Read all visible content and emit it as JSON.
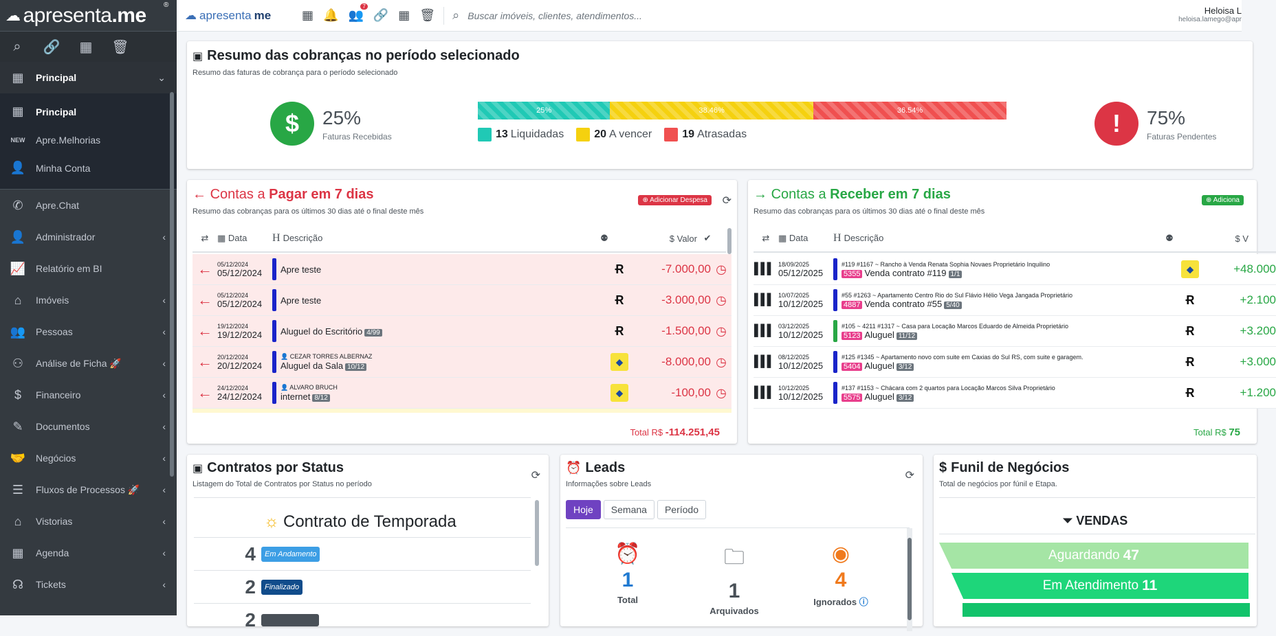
{
  "sidebar": {
    "brand_light": "apresenta",
    "brand_bold": ".me",
    "brand_reg": "®",
    "sections": [
      {
        "label": "Principal"
      }
    ],
    "sub_items": [
      {
        "label": "Principal"
      },
      {
        "label": "Apre.Melhorias"
      },
      {
        "label": "Minha Conta"
      }
    ],
    "items": [
      {
        "label": "Apre.Chat"
      },
      {
        "label": "Administrador"
      },
      {
        "label": "Relatório em BI"
      },
      {
        "label": "Imóveis"
      },
      {
        "label": "Pessoas"
      },
      {
        "label": "Análise de Ficha 🚀"
      },
      {
        "label": "Financeiro"
      },
      {
        "label": "Documentos"
      },
      {
        "label": "Negócios"
      },
      {
        "label": "Fluxos de Processos 🚀"
      },
      {
        "label": "Vistorias"
      },
      {
        "label": "Agenda"
      },
      {
        "label": "Tickets"
      }
    ]
  },
  "topbar": {
    "logo_light": "apresenta",
    "logo_bold": "me",
    "notification_count": "7",
    "search_placeholder": "Buscar imóveis, clientes, atendimentos...",
    "user_name": "Heloisa L",
    "user_email": "heloisa.lamego@apr"
  },
  "resumo": {
    "title": "Resumo das cobranças no período selecionado",
    "subtitle": "Resumo das faturas de cobrança para o período selecionado",
    "received_pct": "25%",
    "received_label": "Faturas Recebidas",
    "pending_pct": "75%",
    "pending_label": "Faturas Pendentes",
    "bars": [
      {
        "label": "25%",
        "value": 25,
        "color": "#20c9b5"
      },
      {
        "label": "38.46%",
        "value": 38.46,
        "color": "#f5d10f"
      },
      {
        "label": "36.54%",
        "value": 36.54,
        "color": "#f05050"
      }
    ],
    "legend": [
      {
        "count": "13",
        "label": "Liquidadas",
        "color": "#20c9b5"
      },
      {
        "count": "20",
        "label": "A vencer",
        "color": "#f5d10f"
      },
      {
        "count": "19",
        "label": "Atrasadas",
        "color": "#f05050"
      }
    ]
  },
  "pagar": {
    "title_a": "Contas a ",
    "title_b": "Pagar",
    "title_c": " em 7 dias",
    "subtitle": "Resumo das cobranças para os últimos 30 dias até o final deste mês",
    "add_button": "Adicionar Despesa",
    "headers": {
      "date": "Data",
      "desc": "Descrição",
      "value": "Valor"
    },
    "rows": [
      {
        "d1": "05/12/2024",
        "d2": "05/12/2024",
        "meta": "",
        "desc": "Apre teste",
        "tag": "",
        "bank": "r",
        "value": "-7.000,00"
      },
      {
        "d1": "05/12/2024",
        "d2": "05/12/2024",
        "meta": "",
        "desc": "Apre teste",
        "tag": "",
        "bank": "r",
        "value": "-3.000,00"
      },
      {
        "d1": "19/12/2024",
        "d2": "19/12/2024",
        "meta": "",
        "desc": "Aluguel do Escritório",
        "tag": "4/99",
        "bank": "r",
        "value": "-1.500,00"
      },
      {
        "d1": "20/12/2024",
        "d2": "20/12/2024",
        "meta": "CEZAR TORRES ALBERNAZ",
        "desc": "Aluguel da Sala",
        "tag": "10/12",
        "bank": "bb",
        "value": "-8.000,00"
      },
      {
        "d1": "24/12/2024",
        "d2": "24/12/2024",
        "meta": "ALVARO BRUCH",
        "desc": "internet",
        "tag": "8/12",
        "bank": "bb",
        "value": "-100,00"
      }
    ],
    "total_label": "Total R$ ",
    "total_value": "-114.251,45"
  },
  "receber": {
    "title_a": "Contas a ",
    "title_b": "Receber",
    "title_c": " em 7 dias",
    "subtitle": "Resumo das cobranças para os últimos 30 dias até o final deste mês",
    "add_button": "Adiciona",
    "headers": {
      "date": "Data",
      "desc": "Descrição",
      "value": "V"
    },
    "rows": [
      {
        "d1": "18/09/2025",
        "d2": "05/12/2025",
        "meta": "#119  #1167 ~ Rancho à Venda  Renata Sophia Novaes  Proprietário  Inquilino",
        "num": "5355",
        "desc": "Venda contrato #119",
        "tag": "1/1",
        "bank": "bb",
        "value": "+48.000",
        "bar": "#1a24c9"
      },
      {
        "d1": "10/07/2025",
        "d2": "10/12/2025",
        "meta": "#55  #1263 ~ Apartamento Centro Rio do Sul  Flávio Hélio Vega Jangada  Proprietário",
        "num": "4887",
        "desc": "Venda contrato #55",
        "tag": "5/40",
        "bank": "r",
        "value": "+2.100",
        "bar": "#1a24c9"
      },
      {
        "d1": "03/12/2025",
        "d2": "10/12/2025",
        "meta": "#105 ~ 4211  #1317 ~ Casa para Locação  Marcos Eduardo de Almeida  Proprietário",
        "num": "5123",
        "desc": "Aluguel",
        "tag": "11/12",
        "bank": "r",
        "value": "+3.200",
        "bar": "#28a745"
      },
      {
        "d1": "08/12/2025",
        "d2": "10/12/2025",
        "meta": "#125  #1345 ~ Apartamento novo com suite em Caxias do Sul RS, com suite e garagem.",
        "num": "5404",
        "desc": "Aluguel",
        "tag": "3/12",
        "bank": "r",
        "value": "+3.000",
        "bar": "#1a24c9"
      },
      {
        "d1": "10/12/2025",
        "d2": "10/12/2025",
        "meta": "#137  #1153 ~ Chácara com 2 quartos para Locação  Marcos Silva  Proprietário",
        "num": "5575",
        "desc": "Aluguel",
        "tag": "3/12",
        "bank": "r",
        "value": "+1.200",
        "bar": "#1a24c9"
      }
    ],
    "total_label": "Total R$ ",
    "total_value": "75"
  },
  "contratos": {
    "title": "Contratos por Status",
    "subtitle": "Listagem do Total de Contratos por Status no período",
    "group": "Contrato de Temporada",
    "rows": [
      {
        "count": "4",
        "status": "Em Andamento",
        "color": "#3c9ee5"
      },
      {
        "count": "2",
        "status": "Finalizado",
        "color": "#114c8b"
      },
      {
        "count": "2",
        "status": "",
        "color": "#495057"
      }
    ]
  },
  "leads": {
    "title": "Leads",
    "subtitle": "Informações sobre Leads",
    "tabs": [
      "Hoje",
      "Semana",
      "Período"
    ],
    "cols": [
      {
        "n": "1",
        "t": "Total",
        "color": "#1f7ad1"
      },
      {
        "n": "1",
        "t": "Arquivados",
        "color": "#495057"
      },
      {
        "n": "4",
        "t": "Ignorados",
        "color": "#f07a1d"
      }
    ]
  },
  "funil": {
    "title": "Funil de Negócios",
    "subtitle": "Total de negócios por fúnil e Etapa.",
    "group": "VENDAS",
    "stages": [
      {
        "label": "Aguardando",
        "value": "47",
        "color": "#a5e5a5"
      },
      {
        "label": "Em Atendimento",
        "value": "11",
        "color": "#1ed67a"
      }
    ]
  }
}
